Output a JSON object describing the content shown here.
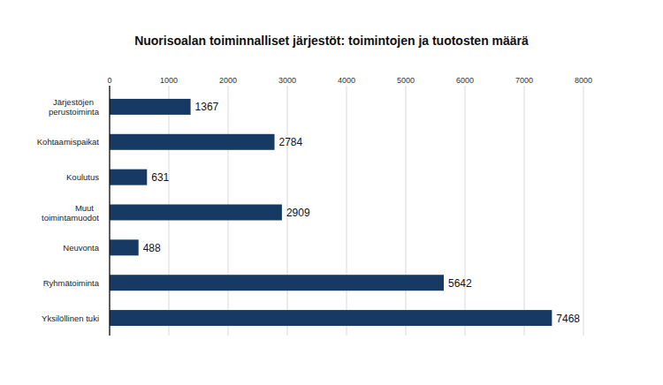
{
  "chart_data": {
    "type": "bar",
    "orientation": "horizontal",
    "title": "Nuorisoalan toiminnalliset järjestöt: toimintojen ja tuotosten määrä",
    "categories": [
      "Järjestöjen perustoiminta",
      "Kohtaamispaikat",
      "Koulutus",
      "Muut toimintamuodot",
      "Neuvonta",
      "Ryhmätoiminta",
      "Yksilöllinen tuki"
    ],
    "values": [
      1367,
      2784,
      631,
      2909,
      488,
      5642,
      7468
    ],
    "color": "#163a63",
    "xlim": [
      0,
      8000
    ],
    "xticks": [
      0,
      1000,
      2000,
      3000,
      4000,
      5000,
      6000,
      7000,
      8000
    ],
    "grid": true,
    "data_labels": true
  }
}
